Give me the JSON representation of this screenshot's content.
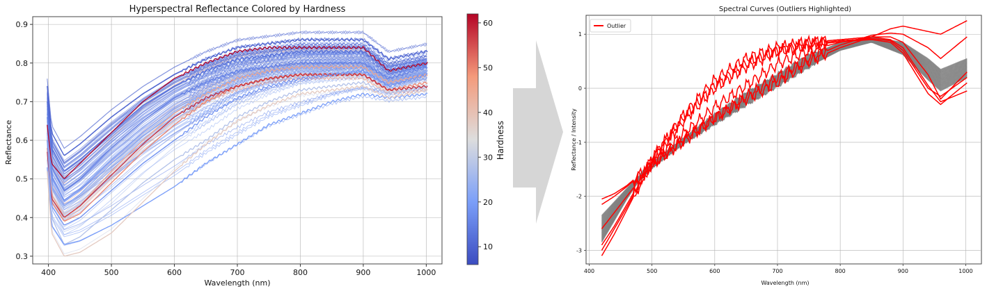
{
  "colors": {
    "cool_low": "#3b4cc0",
    "neutral": "#dddddd",
    "warm_high": "#b40426",
    "curve_gray": "#808080",
    "outlier_red": "#ff0000",
    "arrow_fill": "#d6d6d6",
    "grid": "#b0b0b0"
  },
  "chart_data": [
    {
      "type": "line",
      "title": "Hyperspectral Reflectance Colored by Hardness",
      "xlabel": "Wavelength (nm)",
      "ylabel": "Reflectance",
      "xlim": [
        375,
        1025
      ],
      "ylim": [
        0.28,
        0.92
      ],
      "xticks": [
        400,
        500,
        600,
        700,
        800,
        900,
        1000
      ],
      "yticks": [
        0.3,
        0.4,
        0.5,
        0.6,
        0.7,
        0.8,
        0.9
      ],
      "grid": true,
      "colorbar": {
        "label": "Hardness",
        "colormap": "coolwarm",
        "range": [
          6,
          62
        ],
        "ticks": [
          10,
          20,
          30,
          40,
          50,
          60
        ]
      },
      "series_style": "about 120 reflectance spectra, each colored by its hardness value",
      "series": [
        {
          "hardness": 10,
          "x": [
            398,
            405,
            425,
            450,
            500,
            550,
            600,
            650,
            700,
            750,
            800,
            850,
            900,
            940,
            1002
          ],
          "values": [
            0.74,
            0.62,
            0.56,
            0.59,
            0.66,
            0.72,
            0.77,
            0.81,
            0.84,
            0.85,
            0.86,
            0.86,
            0.86,
            0.81,
            0.83
          ]
        },
        {
          "hardness": 12,
          "x": [
            398,
            405,
            425,
            450,
            500,
            550,
            600,
            650,
            700,
            750,
            800,
            850,
            900,
            940,
            1002
          ],
          "values": [
            0.7,
            0.58,
            0.52,
            0.55,
            0.62,
            0.69,
            0.74,
            0.78,
            0.81,
            0.82,
            0.83,
            0.83,
            0.83,
            0.78,
            0.8
          ]
        },
        {
          "hardness": 15,
          "x": [
            398,
            405,
            425,
            450,
            500,
            550,
            600,
            650,
            700,
            750,
            800,
            850,
            900,
            940,
            1002
          ],
          "values": [
            0.66,
            0.53,
            0.47,
            0.5,
            0.58,
            0.65,
            0.71,
            0.75,
            0.78,
            0.79,
            0.8,
            0.8,
            0.8,
            0.76,
            0.79
          ]
        },
        {
          "hardness": 22,
          "x": [
            398,
            405,
            425,
            450,
            500,
            550,
            600,
            650,
            700,
            750,
            800,
            850,
            900,
            940,
            1002
          ],
          "values": [
            0.62,
            0.48,
            0.43,
            0.46,
            0.54,
            0.61,
            0.67,
            0.72,
            0.76,
            0.78,
            0.79,
            0.79,
            0.79,
            0.75,
            0.78
          ]
        },
        {
          "hardness": 28,
          "x": [
            398,
            405,
            425,
            450,
            500,
            550,
            600,
            650,
            700,
            750,
            800,
            850,
            900,
            940,
            1002
          ],
          "values": [
            0.55,
            0.4,
            0.33,
            0.35,
            0.42,
            0.49,
            0.55,
            0.6,
            0.66,
            0.7,
            0.73,
            0.74,
            0.75,
            0.72,
            0.74
          ]
        },
        {
          "hardness": 20,
          "x": [
            398,
            405,
            425,
            450,
            500,
            550,
            600,
            650,
            700,
            750,
            800,
            850,
            900,
            940,
            1002
          ],
          "values": [
            0.53,
            0.38,
            0.33,
            0.34,
            0.38,
            0.43,
            0.48,
            0.54,
            0.59,
            0.64,
            0.67,
            0.7,
            0.72,
            0.71,
            0.72
          ]
        },
        {
          "hardness": 38,
          "x": [
            398,
            405,
            425,
            450,
            500,
            550,
            600,
            650,
            700,
            750,
            800,
            850,
            900,
            940,
            1002
          ],
          "values": [
            0.52,
            0.36,
            0.3,
            0.31,
            0.36,
            0.44,
            0.52,
            0.59,
            0.65,
            0.69,
            0.72,
            0.73,
            0.74,
            0.71,
            0.73
          ]
        },
        {
          "hardness": 45,
          "x": [
            398,
            405,
            425,
            450,
            500,
            550,
            600,
            650,
            700,
            750,
            800,
            850,
            900,
            940,
            1002
          ],
          "values": [
            0.6,
            0.46,
            0.4,
            0.43,
            0.52,
            0.6,
            0.67,
            0.72,
            0.76,
            0.78,
            0.79,
            0.79,
            0.79,
            0.75,
            0.77
          ]
        },
        {
          "hardness": 50,
          "x": [
            398,
            405,
            425,
            450,
            500,
            550,
            600,
            650,
            700,
            750,
            800,
            850,
            900,
            940,
            1002
          ],
          "values": [
            0.58,
            0.44,
            0.39,
            0.41,
            0.49,
            0.57,
            0.64,
            0.7,
            0.74,
            0.76,
            0.77,
            0.77,
            0.77,
            0.73,
            0.75
          ]
        },
        {
          "hardness": 58,
          "x": [
            398,
            405,
            425,
            450,
            500,
            550,
            600,
            650,
            700,
            750,
            800,
            850,
            900,
            940,
            1002
          ],
          "values": [
            0.57,
            0.45,
            0.4,
            0.43,
            0.51,
            0.59,
            0.66,
            0.71,
            0.74,
            0.76,
            0.77,
            0.77,
            0.77,
            0.73,
            0.74
          ]
        },
        {
          "hardness": 62,
          "x": [
            398,
            405,
            425,
            450,
            500,
            550,
            600,
            650,
            700,
            750,
            800,
            850,
            900,
            940,
            1002
          ],
          "values": [
            0.64,
            0.54,
            0.5,
            0.54,
            0.62,
            0.7,
            0.76,
            0.8,
            0.83,
            0.84,
            0.84,
            0.84,
            0.84,
            0.78,
            0.8
          ]
        },
        {
          "hardness": 18,
          "x": [
            398,
            405,
            425,
            450,
            500,
            550,
            600,
            650,
            700,
            750,
            800,
            850,
            900,
            940,
            1002
          ],
          "values": [
            0.6,
            0.43,
            0.38,
            0.4,
            0.47,
            0.54,
            0.6,
            0.66,
            0.71,
            0.74,
            0.76,
            0.77,
            0.78,
            0.74,
            0.77
          ]
        }
      ]
    },
    {
      "type": "line",
      "title": "Spectral Curves (Outliers Highlighted)",
      "xlabel": "Wavelength (nm)",
      "ylabel": "Reflectance / Intensity",
      "xlim": [
        395,
        1025
      ],
      "ylim": [
        -3.25,
        1.35
      ],
      "xticks": [
        400,
        500,
        600,
        700,
        800,
        900,
        1000
      ],
      "yticks": [
        -3,
        -2,
        -1,
        0,
        1
      ],
      "grid": true,
      "legend": {
        "position": "top-left",
        "entries": [
          "Outlier"
        ]
      },
      "series": [
        {
          "name": "Outlier",
          "x": [
            420,
            440,
            460,
            480,
            500,
            550,
            600,
            650,
            700,
            750,
            800,
            850,
            880,
            900,
            940,
            960,
            1002
          ],
          "values": [
            -2.05,
            -1.95,
            -1.8,
            -1.6,
            -1.4,
            -0.95,
            -0.55,
            -0.2,
            0.1,
            0.5,
            0.75,
            0.95,
            1.1,
            1.15,
            1.05,
            1.0,
            1.25
          ]
        },
        {
          "name": "Outlier",
          "x": [
            420,
            440,
            460,
            480,
            500,
            550,
            600,
            650,
            700,
            750,
            800,
            850,
            880,
            900,
            940,
            960,
            1002
          ],
          "values": [
            -2.15,
            -2.0,
            -1.82,
            -1.62,
            -1.42,
            -0.98,
            -0.55,
            -0.15,
            0.2,
            0.55,
            0.8,
            0.98,
            1.02,
            1.0,
            0.75,
            0.55,
            0.95
          ]
        },
        {
          "name": "Outlier",
          "x": [
            420,
            440,
            460,
            480,
            500,
            550,
            600,
            650,
            700,
            750,
            800,
            850,
            880,
            900,
            940,
            960,
            1002
          ],
          "values": [
            -2.6,
            -2.3,
            -2.0,
            -1.7,
            -1.4,
            -0.85,
            -0.35,
            0.05,
            0.45,
            0.7,
            0.85,
            0.95,
            0.95,
            0.85,
            0.25,
            -0.2,
            0.3
          ]
        },
        {
          "name": "Outlier",
          "x": [
            420,
            440,
            460,
            480,
            500,
            550,
            600,
            650,
            700,
            750,
            800,
            850,
            880,
            900,
            940,
            960,
            1002
          ],
          "values": [
            -3.1,
            -2.7,
            -2.25,
            -1.8,
            -1.35,
            -0.5,
            0.15,
            0.55,
            0.75,
            0.85,
            0.9,
            0.95,
            0.9,
            0.75,
            0.05,
            -0.25,
            -0.05
          ]
        },
        {
          "name": "Outlier",
          "x": [
            420,
            440,
            460,
            480,
            500,
            550,
            600,
            650,
            700,
            750,
            800,
            850,
            880,
            900,
            940,
            960,
            1002
          ],
          "values": [
            -2.9,
            -2.55,
            -2.15,
            -1.75,
            -1.3,
            -0.55,
            0.05,
            0.45,
            0.7,
            0.82,
            0.88,
            0.92,
            0.88,
            0.7,
            0.0,
            -0.15,
            0.2
          ]
        },
        {
          "name": "Outlier",
          "x": [
            420,
            440,
            460,
            480,
            500,
            550,
            600,
            650,
            700,
            750,
            800,
            850,
            880,
            900,
            940,
            960,
            1002
          ],
          "values": [
            -3.0,
            -2.6,
            -2.2,
            -1.78,
            -1.32,
            -0.6,
            0.0,
            0.4,
            0.68,
            0.8,
            0.86,
            0.9,
            0.85,
            0.65,
            -0.1,
            -0.3,
            0.1
          ]
        }
      ]
    }
  ],
  "right_chart_gray_band": {
    "x": [
      420,
      440,
      460,
      480,
      500,
      550,
      600,
      650,
      700,
      750,
      800,
      850,
      900,
      940,
      960,
      1002
    ],
    "upper": [
      -2.35,
      -2.1,
      -1.85,
      -1.62,
      -1.42,
      -0.95,
      -0.5,
      -0.1,
      0.25,
      0.6,
      0.85,
      0.95,
      0.85,
      0.55,
      0.35,
      0.55
    ],
    "lower": [
      -2.85,
      -2.45,
      -2.05,
      -1.7,
      -1.45,
      -1.0,
      -0.65,
      -0.3,
      0.05,
      0.4,
      0.7,
      0.85,
      0.62,
      0.15,
      -0.05,
      0.2
    ]
  }
}
